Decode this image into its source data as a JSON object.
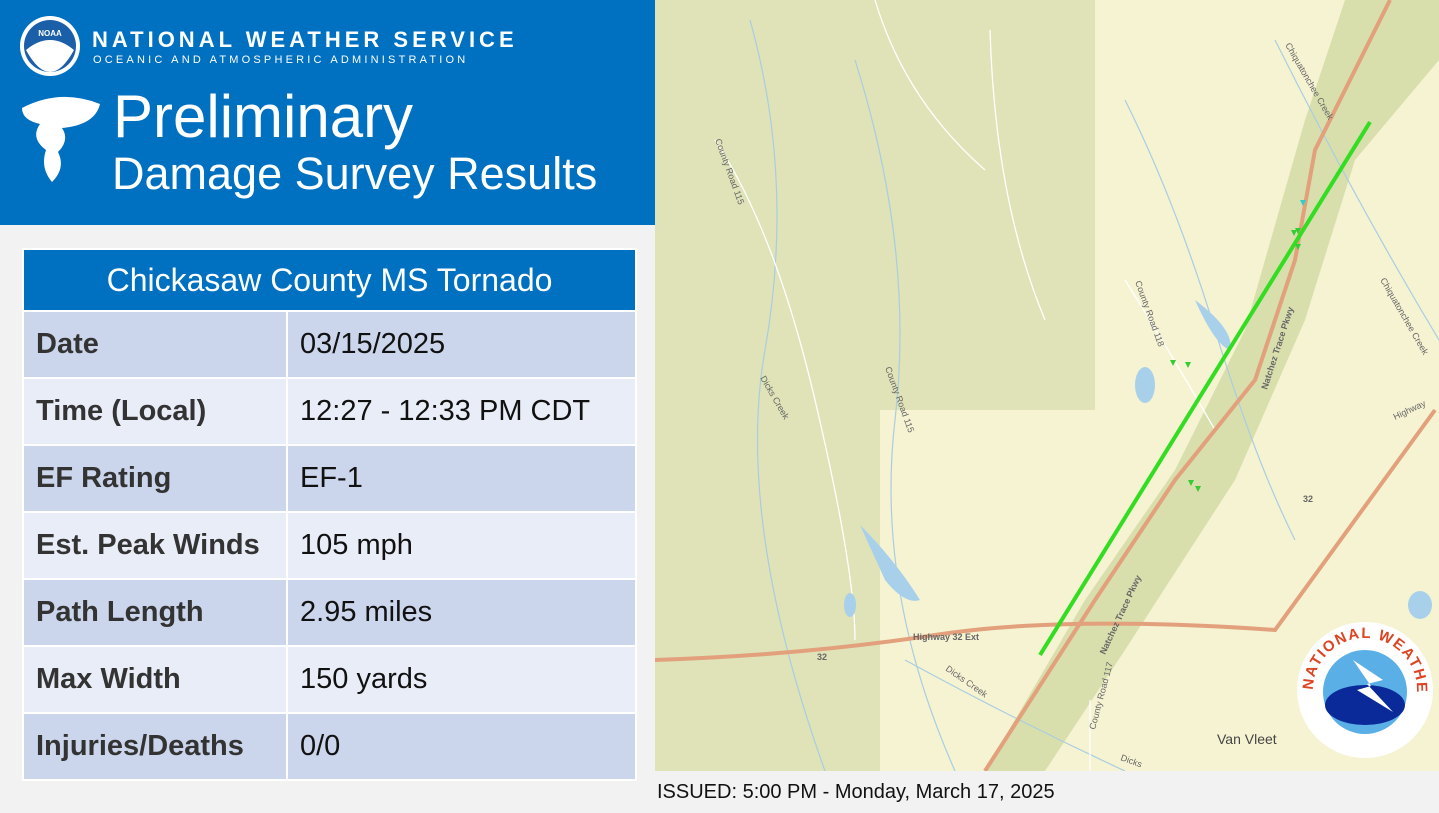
{
  "header": {
    "logo": "NOAA",
    "agency": "NATIONAL WEATHER SERVICE",
    "subagency": "OCEANIC AND ATMOSPHERIC ADMINISTRATION",
    "title": "Preliminary",
    "subtitle": "Damage Survey Results"
  },
  "table": {
    "title": "Chickasaw County MS Tornado",
    "rows": [
      [
        "Date",
        "03/15/2025"
      ],
      [
        "Time (Local)",
        "12:27 - 12:33 PM CDT"
      ],
      [
        "EF Rating",
        "EF-1"
      ],
      [
        "Est. Peak Winds",
        "105 mph"
      ],
      [
        "Path Length",
        "2.95 miles"
      ],
      [
        "Max Width",
        "150 yards"
      ],
      [
        "Injuries/Deaths",
        "0/0"
      ]
    ]
  },
  "map": {
    "labels": [
      "County Road 115",
      "Dicks Creek",
      "County Road 115",
      "County Road 118",
      "Chiquatonchee Creek",
      "Chiquatonchee Creek",
      "Natchez Trace Pkwy",
      "Natchez Trace Pkwy",
      "Highway 32 Ext",
      "32",
      "32",
      "Highway",
      "Dicks Creek",
      "County Road 117",
      "Dicks",
      "Van Vleet"
    ],
    "logo": "NATIONAL WEATHER SERVICE"
  },
  "footer": {
    "issued": "ISSUED: 5:00 PM - Monday, March 17, 2025"
  }
}
